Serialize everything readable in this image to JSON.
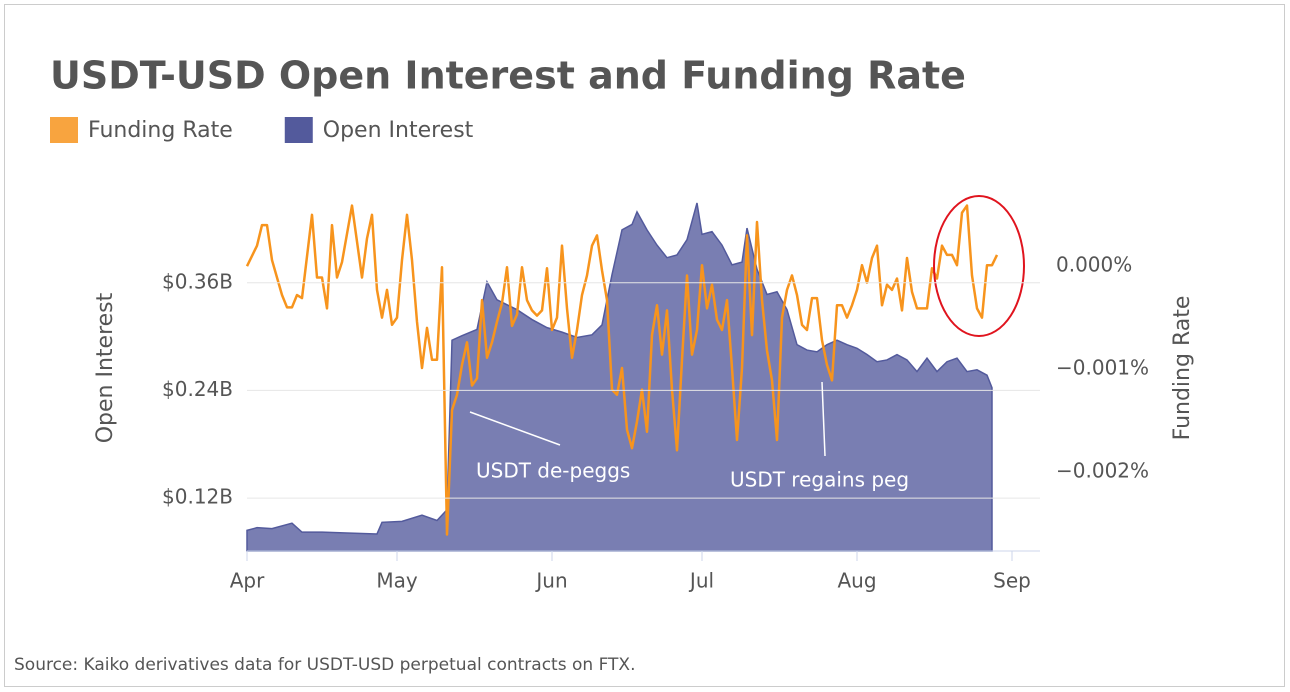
{
  "chart_data": {
    "type": "area-line",
    "title": "USDT-USD Open Interest and Funding Rate",
    "y_label": "Open Interest",
    "y2_label": "Funding Rate",
    "source": "Source: Kaiko derivatives data for USDT-USD perpetual contracts on FTX.",
    "annotations": [
      "USDT de-peggs",
      "USDT regains peg"
    ],
    "xlim": [
      0,
      158.6
    ],
    "xticks": [
      {
        "value": 0,
        "label": "Apr"
      },
      {
        "value": 30,
        "label": "May"
      },
      {
        "value": 61,
        "label": "Jun"
      },
      {
        "value": 91,
        "label": "Jul"
      },
      {
        "value": 122,
        "label": "Aug"
      },
      {
        "value": 153,
        "label": "Sep"
      }
    ],
    "ylim": [
      0.061,
      0.469
    ],
    "yticks": [
      {
        "value": 0.12,
        "label": "$0.12B"
      },
      {
        "value": 0.24,
        "label": "$0.24B"
      },
      {
        "value": 0.36,
        "label": "$0.36B"
      }
    ],
    "y2lim": [
      -0.00277,
      0.00079
    ],
    "y2ticks": [
      {
        "value": 0,
        "label": "0.000%"
      },
      {
        "value": -0.001,
        "label": "−0.001%"
      },
      {
        "value": -0.002,
        "label": "−0.002%"
      }
    ],
    "grid": true,
    "series": [
      {
        "name": "Funding Rate",
        "color": "#f7941d",
        "axis": "y2",
        "kind": "line",
        "x": [
          0,
          2,
          3,
          4,
          5,
          7,
          8,
          9,
          10,
          11,
          13,
          14,
          15,
          16,
          17,
          18,
          19,
          21,
          23,
          24,
          25,
          26,
          27,
          28,
          29,
          30,
          31,
          32,
          33,
          34,
          35,
          36,
          37,
          38,
          39,
          40,
          41,
          42,
          43,
          44,
          45,
          46,
          47,
          48,
          49,
          50,
          51,
          52,
          53,
          54,
          55,
          56,
          57,
          58,
          59,
          60,
          61,
          62,
          63,
          64,
          65,
          66,
          67,
          68,
          69,
          70,
          71,
          72,
          73,
          74,
          75,
          76,
          77,
          78,
          79,
          80,
          81,
          82,
          83,
          84,
          85,
          86,
          87,
          88,
          89,
          90,
          91,
          92,
          93,
          94,
          95,
          96,
          97,
          98,
          99,
          100,
          101,
          102,
          103,
          104,
          105,
          106,
          107,
          108,
          109,
          110,
          111,
          112,
          113,
          114,
          115,
          116,
          117,
          118,
          119,
          120,
          121,
          122,
          123,
          124,
          125,
          126,
          127,
          128,
          129,
          130,
          131,
          132,
          133,
          134,
          135,
          136,
          137,
          138,
          139,
          140,
          141,
          142,
          143,
          144,
          145,
          146,
          147,
          148,
          149,
          150
        ],
        "values": [
          0,
          0.0002,
          0.0004,
          0.0004,
          6e-05,
          -0.00028,
          -0.0004,
          -0.0004,
          -0.00028,
          -0.00031,
          0.0005,
          -0.00011,
          -0.00011,
          -0.00041,
          0.0004,
          -0.00011,
          4e-05,
          0.00059,
          -0.00011,
          0.00027,
          0.0005,
          -0.00023,
          -0.0005,
          -0.00023,
          -0.00057,
          -0.0005,
          6e-05,
          0.0005,
          6e-05,
          -0.00054,
          -0.00099,
          -0.0006,
          -0.00091,
          -0.00091,
          -1e-05,
          -0.00261,
          -0.0014,
          -0.00125,
          -0.00096,
          -0.00074,
          -0.00116,
          -0.00109,
          -0.00033,
          -0.00089,
          -0.00074,
          -0.00054,
          -0.00036,
          -1e-05,
          -0.00058,
          -0.00047,
          -1e-05,
          -0.00033,
          -0.00043,
          -0.00048,
          -0.00043,
          -2e-05,
          -0.00062,
          -0.0005,
          0.0002,
          -0.00041,
          -0.00089,
          -0.00062,
          -0.00028,
          -9e-05,
          0.0002,
          0.0003,
          -4e-05,
          -0.00033,
          -0.0012,
          -0.00125,
          -0.00099,
          -0.00159,
          -0.00177,
          -0.00151,
          -0.0012,
          -0.00161,
          -0.00067,
          -0.00038,
          -0.00086,
          -0.00043,
          -0.0012,
          -0.00179,
          -0.00091,
          -9e-05,
          -0.00086,
          -0.00062,
          1e-05,
          -0.00041,
          -0.00018,
          -0.00052,
          -0.00062,
          -0.00033,
          -0.00099,
          -0.00169,
          -0.00099,
          0.0003,
          -0.00067,
          0.00043,
          -0.00033,
          -0.00082,
          -0.00111,
          -0.00169,
          -0.0005,
          -0.00023,
          -9e-05,
          -0.00028,
          -0.00057,
          -0.00062,
          -0.00031,
          -0.00031,
          -0.00072,
          -0.00096,
          -0.00111,
          -0.00038,
          -0.00038,
          -0.0005,
          -0.00038,
          -0.00023,
          1e-05,
          -0.00016,
          8e-05,
          0.0002,
          -0.00038,
          -0.00018,
          -0.00023,
          -0.00012,
          -0.00043,
          8e-05,
          -0.00025,
          -0.00041,
          -0.00041,
          -0.00041,
          -2e-05,
          -0.00012,
          0.0002,
          0.00011,
          0.00011,
          1e-05,
          0.00052,
          0.00059,
          -9e-05,
          -0.00041,
          -0.0005,
          1e-05,
          1e-05,
          0.00011
        ]
      },
      {
        "name": "Open Interest",
        "color": "#535a9c",
        "axis": "y",
        "kind": "area",
        "x": [
          0,
          2,
          5,
          9,
          11,
          15,
          20,
          26,
          27,
          31,
          35,
          38,
          40,
          41,
          43,
          46,
          48,
          50,
          54,
          57,
          60,
          63,
          66,
          69,
          71,
          73,
          75,
          77,
          78,
          80,
          82,
          84,
          86,
          88,
          90,
          91,
          93,
          95,
          97,
          99,
          100,
          102,
          104,
          106,
          108,
          110,
          112,
          114,
          116,
          118,
          120,
          122,
          124,
          126,
          128,
          130,
          132,
          134,
          136,
          138,
          140,
          142,
          144,
          146,
          148,
          149
        ],
        "values": [
          0.084,
          0.087,
          0.086,
          0.092,
          0.082,
          0.082,
          0.081,
          0.08,
          0.093,
          0.094,
          0.101,
          0.095,
          0.107,
          0.296,
          0.301,
          0.308,
          0.361,
          0.341,
          0.33,
          0.319,
          0.31,
          0.305,
          0.299,
          0.302,
          0.313,
          0.369,
          0.419,
          0.425,
          0.439,
          0.419,
          0.402,
          0.388,
          0.391,
          0.408,
          0.449,
          0.414,
          0.417,
          0.402,
          0.38,
          0.383,
          0.421,
          0.375,
          0.347,
          0.35,
          0.33,
          0.291,
          0.285,
          0.283,
          0.291,
          0.296,
          0.291,
          0.287,
          0.28,
          0.272,
          0.274,
          0.28,
          0.274,
          0.261,
          0.276,
          0.261,
          0.272,
          0.276,
          0.261,
          0.263,
          0.257,
          0.243
        ]
      }
    ]
  }
}
